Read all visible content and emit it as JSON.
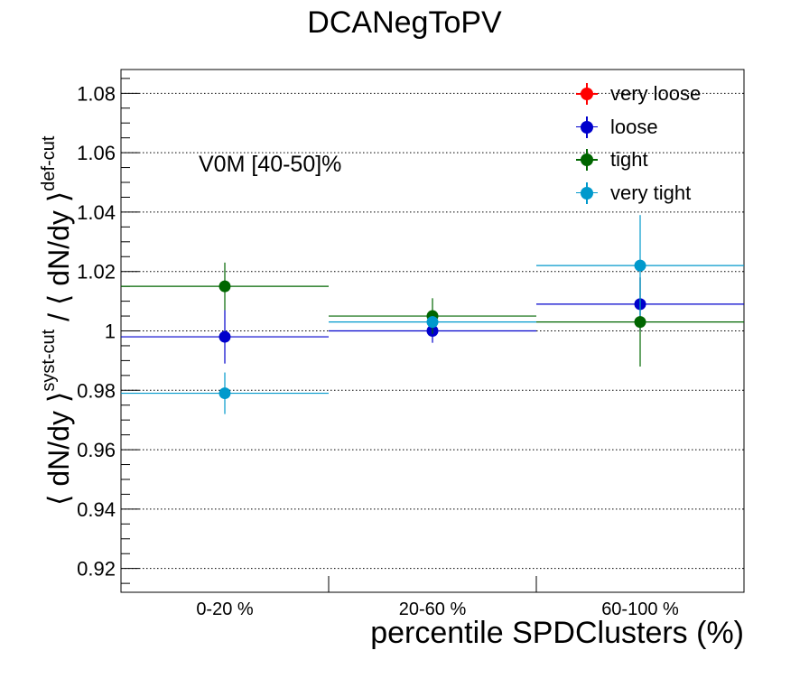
{
  "chart_data": {
    "type": "scatter",
    "title": "DCANegToPV",
    "xlabel": "percentile SPDClusters (%)",
    "ylabel": {
      "main_left": "⟨ dN/dy ⟩",
      "sup_left": "syst-cut",
      "divider": " / ",
      "main_right": "⟨ dN/dy ⟩",
      "sup_right": "def-cut"
    },
    "annotation": "V0M [40-50]%",
    "categories": [
      "0-20 %",
      "20-60 %",
      "60-100 %"
    ],
    "ylim": [
      0.912,
      1.088
    ],
    "yticks": [
      0.92,
      0.94,
      0.96,
      0.98,
      1,
      1.02,
      1.04,
      1.06,
      1.08
    ],
    "ytick_labels": [
      "0.92",
      "0.94",
      "0.96",
      "0.98",
      "1",
      "1.02",
      "1.04",
      "1.06",
      "1.08"
    ],
    "grid": true,
    "legend_position": "top-right",
    "series": [
      {
        "name": "very loose",
        "color": "#ff0000",
        "values": [
          null,
          null,
          null
        ],
        "errors": [
          null,
          null,
          null
        ]
      },
      {
        "name": "loose",
        "color": "#0000cc",
        "values": [
          0.998,
          1.0,
          1.009
        ],
        "errors": [
          0.009,
          0.004,
          0.009
        ]
      },
      {
        "name": "tight",
        "color": "#006600",
        "values": [
          1.015,
          1.005,
          1.003
        ],
        "errors": [
          0.008,
          0.006,
          0.015
        ]
      },
      {
        "name": "very tight",
        "color": "#0099cc",
        "values": [
          0.979,
          1.003,
          1.022
        ],
        "errors": [
          0.007,
          0.002,
          0.017
        ]
      }
    ]
  }
}
